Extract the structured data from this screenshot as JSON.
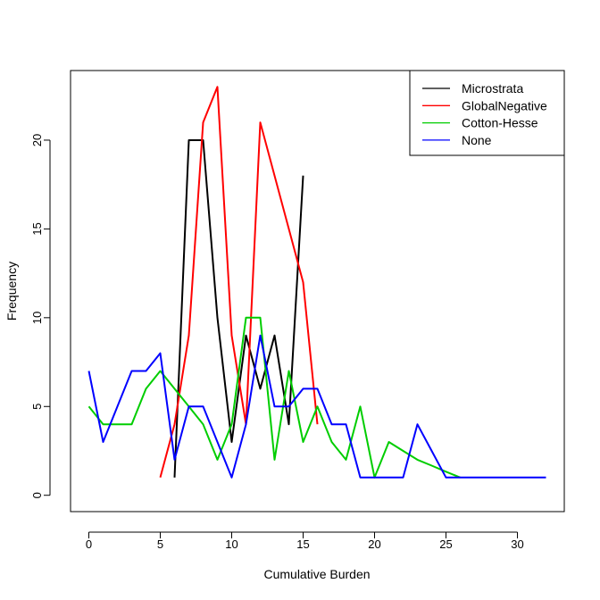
{
  "chart_data": {
    "type": "line",
    "title": "",
    "xlabel": "Cumulative Burden",
    "ylabel": "Frequency",
    "xlim": [
      -1.28,
      33.28
    ],
    "ylim": [
      -0.92,
      23.92
    ],
    "xticks": [
      0,
      5,
      10,
      15,
      20,
      25,
      30
    ],
    "yticks": [
      0,
      5,
      10,
      15,
      20
    ],
    "grid": false,
    "legend_position": "top-right",
    "series": [
      {
        "name": "Microstrata",
        "color": "#000000",
        "x": [
          6,
          7,
          8,
          9,
          10,
          11,
          12,
          13,
          14,
          15
        ],
        "y": [
          1,
          20,
          20,
          10,
          3,
          9,
          6,
          9,
          4,
          18
        ]
      },
      {
        "name": "GlobalNegative",
        "color": "#ff0000",
        "x": [
          5,
          6,
          7,
          8,
          9,
          10,
          11,
          12,
          13,
          14,
          15,
          16
        ],
        "y": [
          1,
          4,
          9,
          21,
          23,
          9,
          4,
          21,
          18,
          15,
          12,
          4
        ]
      },
      {
        "name": "Cotton-Hesse",
        "color": "#00cd00",
        "x": [
          0,
          1,
          2,
          3,
          4,
          5,
          6,
          7,
          8,
          9,
          10,
          11,
          12,
          13,
          14,
          15,
          16,
          17,
          18,
          19,
          20,
          21,
          22,
          23,
          24,
          25,
          26
        ],
        "y": [
          5,
          4,
          4,
          4,
          6,
          7,
          6,
          5,
          4,
          2,
          4,
          10,
          10,
          2,
          7,
          3,
          5,
          3,
          2,
          5,
          1,
          3,
          2.5,
          2,
          1.67,
          1.33,
          1
        ]
      },
      {
        "name": "None",
        "color": "#0000ff",
        "x": [
          0,
          1,
          2,
          3,
          4,
          5,
          6,
          7,
          8,
          9,
          10,
          11,
          12,
          13,
          14,
          15,
          16,
          17,
          18,
          19,
          20,
          21,
          22,
          23,
          24,
          25,
          26,
          27,
          28,
          29,
          30,
          31,
          32
        ],
        "y": [
          7,
          3,
          5,
          7,
          7,
          8,
          2,
          5,
          5,
          3,
          1,
          4,
          9,
          5,
          5,
          6,
          6,
          4,
          4,
          1,
          1,
          1,
          1,
          4,
          2.5,
          1,
          1,
          1,
          1,
          1,
          1,
          1,
          1
        ]
      }
    ]
  }
}
